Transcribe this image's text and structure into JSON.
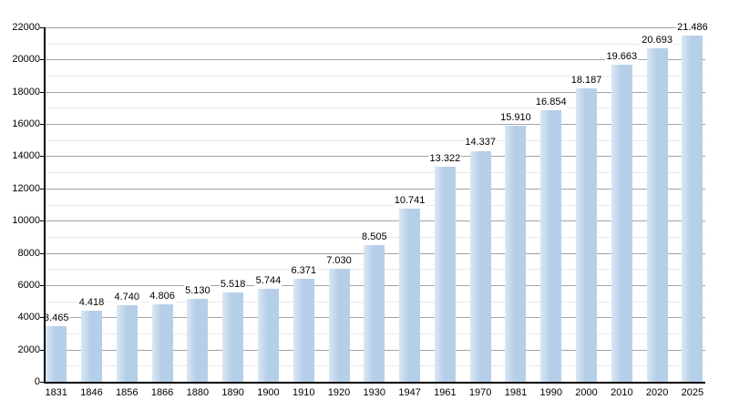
{
  "chart_data": {
    "type": "bar",
    "title": "",
    "xlabel": "",
    "ylabel": "",
    "categories": [
      "1831",
      "1846",
      "1856",
      "1866",
      "1880",
      "1890",
      "1900",
      "1910",
      "1920",
      "1930",
      "1947",
      "1961",
      "1970",
      "1981",
      "1990",
      "2000",
      "2010",
      "2020",
      "2025"
    ],
    "values": [
      3465,
      4418,
      4740,
      4806,
      5130,
      5518,
      5744,
      6371,
      7030,
      8505,
      10741,
      13322,
      14337,
      15910,
      16854,
      18187,
      19663,
      20693,
      21486
    ],
    "value_labels": [
      "3.465",
      "4.418",
      "4.740",
      "4.806",
      "5.130",
      "5.518",
      "5.744",
      "6.371",
      "7.030",
      "8.505",
      "10.741",
      "13.322",
      "14.337",
      "15.910",
      "16.854",
      "18.187",
      "19.663",
      "20.693",
      "21.486"
    ],
    "ylim": [
      0,
      22000
    ],
    "y_major_step": 2000,
    "y_minor_step": 1000,
    "y_tick_labels": [
      "0",
      "2000",
      "4000",
      "6000",
      "8000",
      "10000",
      "12000",
      "14000",
      "16000",
      "18000",
      "20000",
      "22000"
    ],
    "grid": true,
    "legend": false
  },
  "colors": {
    "bar_fill": "#b5cfe8",
    "bar_fill_light": "#dbe7f3",
    "grid_major": "#a3a3a3",
    "grid_minor": "#e9e9e9",
    "axis": "#000000",
    "text": "#000000",
    "background": "#ffffff"
  }
}
